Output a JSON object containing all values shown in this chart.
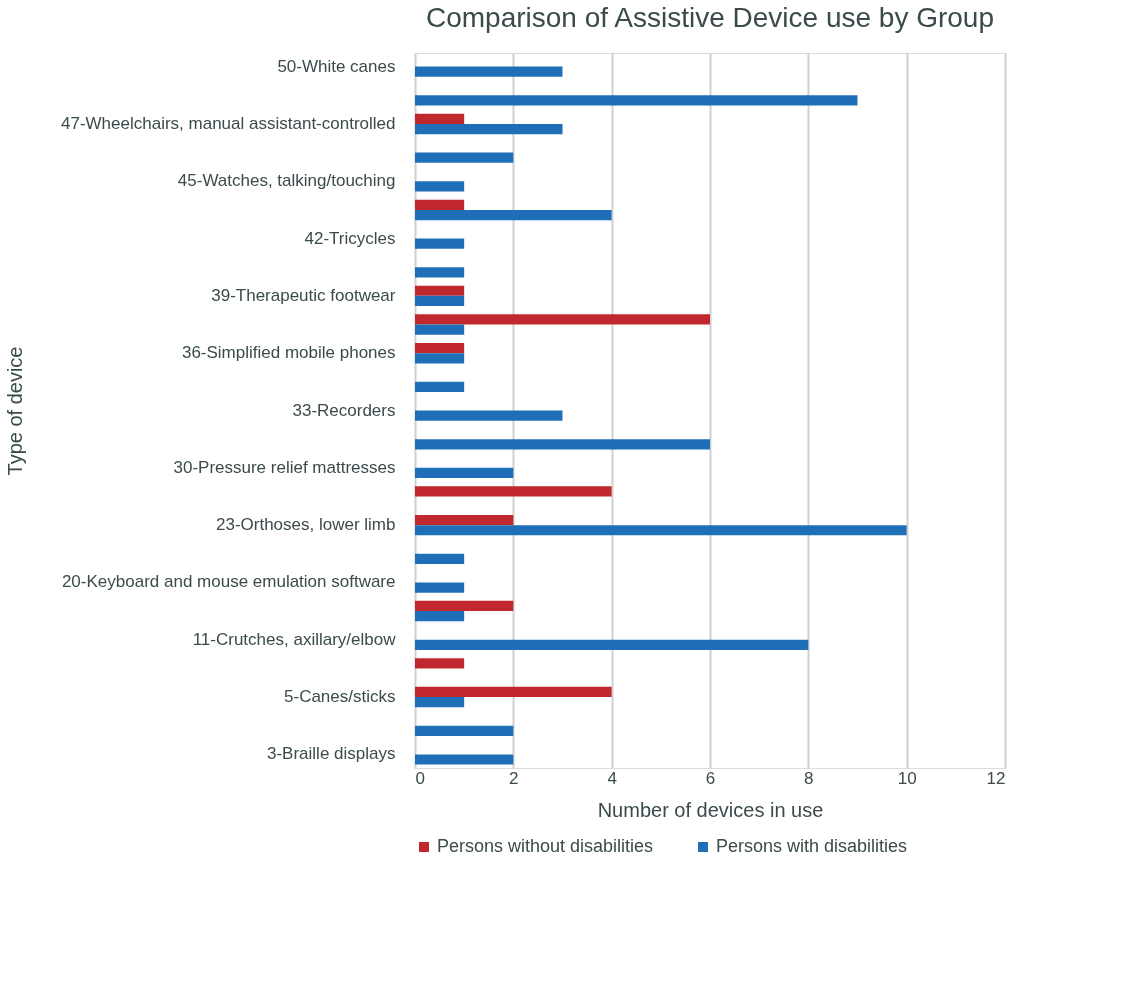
{
  "chart_data": {
    "type": "bar",
    "orientation": "horizontal",
    "title": "Comparison of Assistive Device use by Group",
    "xlabel": "Number of devices in use",
    "ylabel": "Type of device",
    "categories": [
      "50-White canes",
      null,
      "47-Wheelchairs, manual assistant-controlled",
      null,
      "45-Watches, talking/touching",
      null,
      "42-Tricycles",
      null,
      "39-Therapeutic footwear",
      null,
      "36-Simplified mobile phones",
      null,
      "33-Recorders",
      null,
      "30-Pressure relief mattresses",
      null,
      "23-Orthoses, lower limb",
      null,
      "20-Keyboard and mouse emulation software",
      null,
      "11-Crutches, axillary/elbow",
      null,
      "5-Canes/sticks",
      null,
      "3-Braille displays"
    ],
    "series": [
      {
        "name": "Persons without disabilities",
        "color": "#c0282d",
        "values": [
          null,
          null,
          1,
          null,
          null,
          1,
          null,
          null,
          1,
          6,
          1,
          null,
          null,
          null,
          null,
          4,
          2,
          null,
          null,
          2,
          null,
          1,
          4,
          null,
          null
        ]
      },
      {
        "name": "Persons with disabilities",
        "color": "#1f6fb8",
        "values": [
          3,
          9,
          3,
          2,
          1,
          4,
          1,
          1,
          1,
          1,
          1,
          1,
          3,
          6,
          2,
          null,
          10,
          1,
          1,
          1,
          8,
          null,
          1,
          2,
          2
        ]
      }
    ],
    "xlim": [
      0,
      12
    ],
    "xticks": [
      0,
      2,
      4,
      6,
      8,
      10,
      12
    ],
    "grid": "x",
    "legend": "bottom"
  }
}
